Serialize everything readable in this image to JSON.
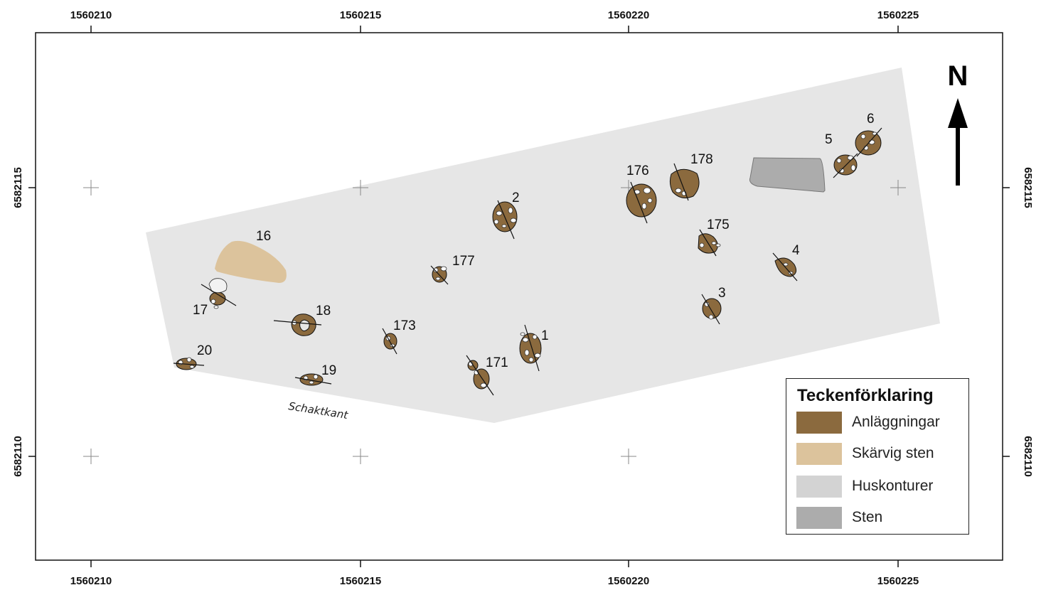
{
  "grid": {
    "x_labels": [
      "1560210",
      "1560215",
      "1560220",
      "1560225"
    ],
    "y_labels": [
      "6582115",
      "6582110"
    ]
  },
  "edge_label": "Schaktkant",
  "north_label": "N",
  "features": [
    "16",
    "17",
    "18",
    "19",
    "20",
    "173",
    "177",
    "171",
    "2",
    "1",
    "176",
    "178",
    "175",
    "3",
    "4",
    "5",
    "6"
  ],
  "legend": {
    "title": "Teckenförklaring",
    "items": [
      {
        "label": "Anläggningar",
        "color": "#8b6a3e"
      },
      {
        "label": "Skärvig sten",
        "color": "#dcc39c"
      },
      {
        "label": "Huskonturer",
        "color": "#d3d3d3"
      },
      {
        "label": "Sten",
        "color": "#acacac"
      }
    ]
  },
  "colors": {
    "excavation_area": "#e6e6e6",
    "feature_fill": "#8b6a3e",
    "fire_cracked_stone": "#dcc39c",
    "stone": "#acacac"
  }
}
